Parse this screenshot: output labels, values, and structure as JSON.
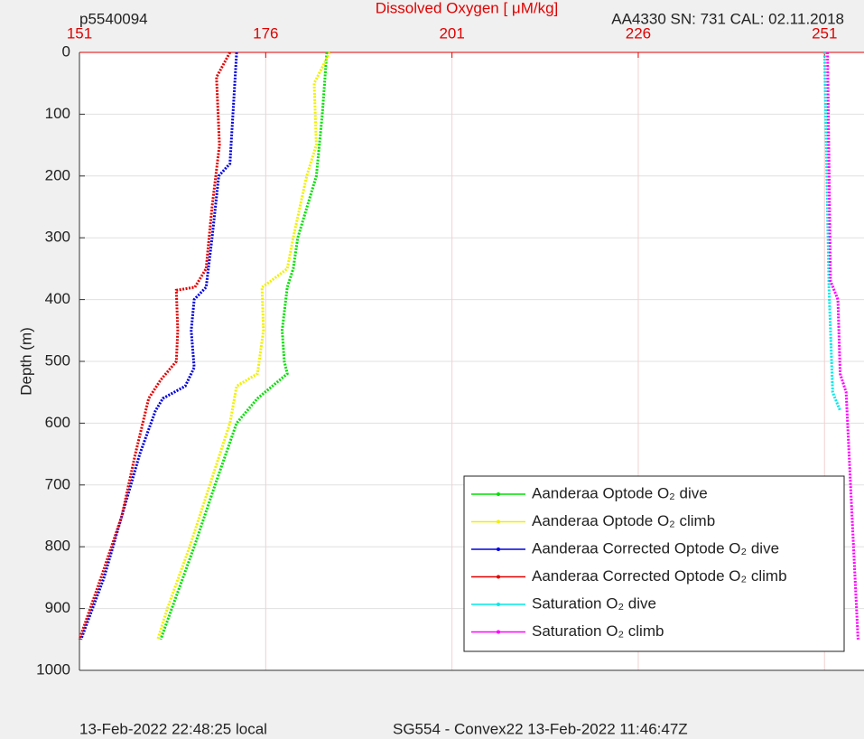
{
  "chart_data": {
    "type": "line",
    "title": "Dissolved Oxygen [  μM/kg]",
    "ylabel": "Depth (m)",
    "annotations": [
      "p5540094",
      "AA4330   SN: 731   CAL: 02.11.2018",
      "13-Feb-2022 22:48:25 local",
      "SG554 - Convex22 13-Feb-2022 11:46:47Z"
    ],
    "xlim": [
      151,
      256.3
    ],
    "xticks": [
      151,
      176,
      201,
      226,
      251
    ],
    "ylim": [
      0,
      1000
    ],
    "yticks": [
      0,
      100,
      200,
      300,
      400,
      500,
      600,
      700,
      800,
      900,
      1000
    ],
    "y_reversed": true,
    "grid": true,
    "legend": "southeast",
    "series": [
      {
        "name": "Aanderaa Optode O₂ dive",
        "color": "#00e000",
        "x": [
          184.2,
          183.6,
          182.8,
          180.3,
          179.7,
          178.9,
          178.2,
          178.5,
          178.9,
          174.9,
          172.1,
          169.2,
          166.4,
          163.4,
          161.9
        ],
        "values": [
          0,
          100,
          200,
          300,
          350,
          380,
          450,
          500,
          520,
          560,
          600,
          700,
          800,
          900,
          950
        ]
      },
      {
        "name": "Aanderaa Optode O₂ climb",
        "color": "#f0f000",
        "x": [
          184.6,
          182.5,
          182.8,
          181.5,
          179.7,
          178.9,
          176.7,
          175.5,
          175.7,
          174.9,
          172.1,
          171.2,
          168.5,
          165.8,
          162.8,
          161.5
        ],
        "values": [
          0,
          50,
          150,
          200,
          300,
          350,
          370,
          380,
          450,
          520,
          540,
          600,
          700,
          800,
          900,
          950
        ]
      },
      {
        "name": "Aanderaa Corrected Optode O₂ dive",
        "color": "#0000e0",
        "x": [
          172.1,
          171.6,
          171.2,
          169.7,
          168.8,
          168.0,
          166.4,
          166.0,
          166.4,
          165.2,
          162.2,
          161.2,
          159.1,
          156.7,
          154.3,
          151.2
        ],
        "values": [
          0,
          100,
          180,
          200,
          300,
          380,
          400,
          450,
          510,
          540,
          560,
          580,
          650,
          750,
          850,
          950
        ]
      },
      {
        "name": "Aanderaa Corrected Optode O₂ climb",
        "color": "#e00000",
        "x": [
          171.2,
          169.4,
          169.8,
          168.8,
          168.0,
          166.5,
          164.0,
          164.2,
          164.0,
          161.9,
          160.3,
          158.5,
          156.7,
          153.9,
          151.0
        ],
        "values": [
          0,
          40,
          150,
          250,
          350,
          380,
          385,
          450,
          500,
          530,
          560,
          650,
          750,
          850,
          950
        ]
      },
      {
        "name": "Saturation O₂ dive",
        "color": "#00e8e8",
        "x": [
          251.0,
          251.6,
          252.1,
          253.1
        ],
        "values": [
          0,
          380,
          550,
          580
        ]
      },
      {
        "name": "Saturation O₂ climb",
        "color": "#ff00ff",
        "x": [
          251.4,
          251.8,
          252.8,
          253.1,
          253.9,
          254.5,
          254.9,
          255.5
        ],
        "values": [
          0,
          370,
          400,
          520,
          550,
          700,
          800,
          950
        ]
      }
    ]
  }
}
